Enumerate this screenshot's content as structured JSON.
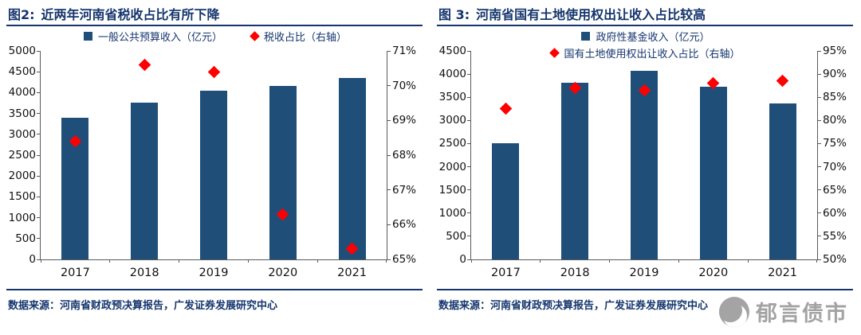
{
  "theme": {
    "navy": "#15356d",
    "bar_blue": "#1f4e79",
    "marker_red": "#ff0000",
    "axis_gray": "#595959"
  },
  "watermark": {
    "text": "郁言债市"
  },
  "chart_data": [
    {
      "type": "bar",
      "combo": "bar+scatter",
      "panel_label": "图2:",
      "title": "近两年河南省税收占比有所下降",
      "categories": [
        "2017",
        "2018",
        "2019",
        "2020",
        "2021"
      ],
      "series": [
        {
          "name": "一般公共预算收入（亿元）",
          "type": "bar",
          "axis": "left",
          "color": "#1f4e79",
          "values": [
            3400,
            3760,
            4040,
            4160,
            4350
          ]
        },
        {
          "name": "税收占比（右轴）",
          "type": "scatter",
          "axis": "right",
          "color": "#ff0000",
          "values": [
            68.4,
            70.6,
            70.4,
            66.3,
            65.3
          ]
        }
      ],
      "left_axis": {
        "min": 0,
        "max": 5000,
        "step": 500,
        "suffix": ""
      },
      "right_axis": {
        "min": 65,
        "max": 71,
        "step": 1,
        "suffix": "%"
      },
      "legend_rows": [
        [
          0,
          1
        ]
      ],
      "grid": false,
      "legend_position": "top",
      "source": "数据来源：河南省财政预决算报告，广发证券发展研究中心"
    },
    {
      "type": "bar",
      "combo": "bar+scatter",
      "panel_label": "图 3:",
      "title": "河南省国有土地使用权出让收入占比较高",
      "categories": [
        "2017",
        "2018",
        "2019",
        "2020",
        "2021"
      ],
      "series": [
        {
          "name": "政府性基金收入（亿元）",
          "type": "bar",
          "axis": "left",
          "color": "#1f4e79",
          "values": [
            2510,
            3820,
            4070,
            3730,
            3370
          ]
        },
        {
          "name": "国有土地使用权出让收入占比（右轴）",
          "type": "scatter",
          "axis": "right",
          "color": "#ff0000",
          "values": [
            82.5,
            87.0,
            86.5,
            88.0,
            88.5
          ]
        }
      ],
      "left_axis": {
        "min": 0,
        "max": 4500,
        "step": 500,
        "suffix": ""
      },
      "right_axis": {
        "min": 50,
        "max": 95,
        "step": 5,
        "suffix": "%"
      },
      "legend_rows": [
        [
          0
        ],
        [
          1
        ]
      ],
      "grid": false,
      "legend_position": "top",
      "source": "数据来源：河南省财政预决算报告，广发证券发展研究中心"
    }
  ]
}
